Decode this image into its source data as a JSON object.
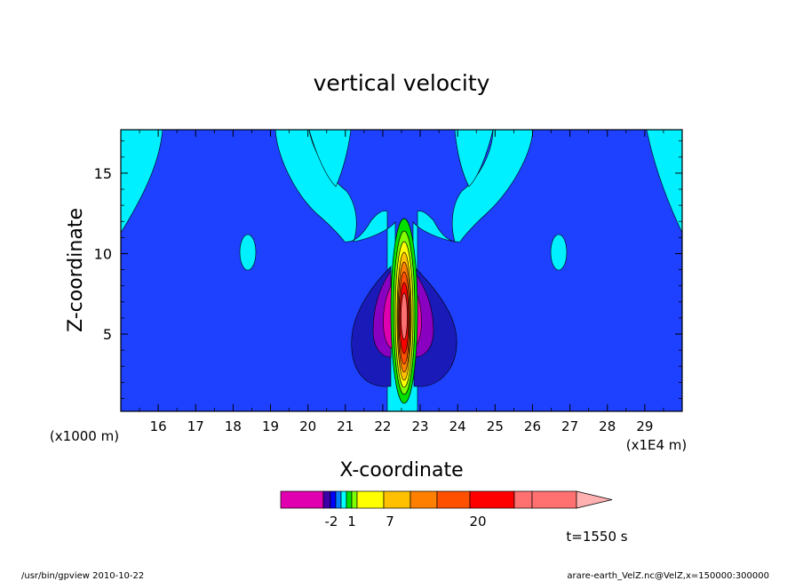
{
  "chart_data": {
    "type": "heatmap",
    "title": "vertical velocity",
    "xlabel": "X-coordinate",
    "ylabel": "Z-coordinate",
    "x_unit_label": "(x1E4 m)",
    "y_unit_label": "(x1000 m)",
    "time_label": "t=1550 s",
    "xlim": [
      15.0,
      30.0
    ],
    "ylim": [
      0.2,
      17.7
    ],
    "x_ticks": [
      "16",
      "17",
      "18",
      "19",
      "20",
      "21",
      "22",
      "23",
      "24",
      "25",
      "26",
      "27",
      "28",
      "29"
    ],
    "y_ticks": [
      "5",
      "10",
      "15"
    ],
    "x_tick_values": [
      16,
      17,
      18,
      19,
      20,
      21,
      22,
      23,
      24,
      25,
      26,
      27,
      28,
      29
    ],
    "y_tick_values": [
      5,
      10,
      15
    ],
    "colorbar": {
      "labels": [
        {
          "text": "-2",
          "value": -2
        },
        {
          "text": "1",
          "value": 1
        },
        {
          "text": "7",
          "value": 7
        },
        {
          "text": "20",
          "value": 20
        }
      ],
      "bins": [
        {
          "color": "#e000b0"
        },
        {
          "color": "#3b00a8"
        },
        {
          "color": "#0000ff"
        },
        {
          "color": "#0080ff"
        },
        {
          "color": "#00ffff"
        },
        {
          "color": "#00e000"
        },
        {
          "color": "#80ff00"
        },
        {
          "color": "#ffff00"
        },
        {
          "color": "#ffc000"
        },
        {
          "color": "#ff8000"
        },
        {
          "color": "#ff5000"
        },
        {
          "color": "#ff0000"
        },
        {
          "color": "#ff7070"
        },
        {
          "color": "#ffb0b0"
        }
      ]
    },
    "background_color": "#1e40ff",
    "features": [
      {
        "name": "updraft-core",
        "x": 22.6,
        "z": 6.5,
        "max_value": 20
      },
      {
        "name": "downdraft-left",
        "x": 22.0,
        "z": 6.5,
        "value": -2
      },
      {
        "name": "downdraft-right",
        "x": 23.2,
        "z": 6.5,
        "value": -2
      },
      {
        "name": "cyan-blob-left",
        "x": 18.4,
        "z": 10.0,
        "value": 1
      },
      {
        "name": "cyan-blob-right",
        "x": 26.7,
        "z": 10.0,
        "value": 1
      }
    ]
  },
  "footer": {
    "left": "/usr/bin/gpview  2010-10-22",
    "right": "arare-earth_VelZ.nc@VelZ,x=150000:300000"
  }
}
